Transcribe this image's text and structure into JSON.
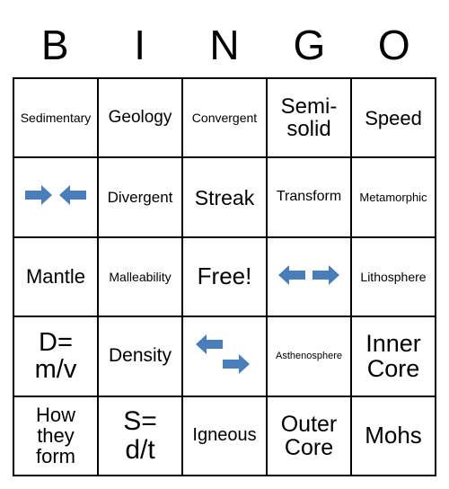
{
  "header": {
    "letters": [
      "B",
      "I",
      "N",
      "G",
      "O"
    ]
  },
  "grid": {
    "arrow_color": "#4a7ebb",
    "cells": [
      [
        {
          "type": "text",
          "text": "Sedimentary",
          "fontsize": 14
        },
        {
          "type": "text",
          "text": "Geology",
          "fontsize": 19
        },
        {
          "type": "text",
          "text": "Convergent",
          "fontsize": 14
        },
        {
          "type": "text",
          "text": "Semi-\nsolid",
          "fontsize": 24
        },
        {
          "type": "text",
          "text": "Speed",
          "fontsize": 22
        }
      ],
      [
        {
          "type": "icon",
          "icon": "arrows-in"
        },
        {
          "type": "text",
          "text": "Divergent",
          "fontsize": 17
        },
        {
          "type": "text",
          "text": "Streak",
          "fontsize": 23
        },
        {
          "type": "text",
          "text": "Transform",
          "fontsize": 16
        },
        {
          "type": "text",
          "text": "Metamorphic",
          "fontsize": 13
        }
      ],
      [
        {
          "type": "text",
          "text": "Mantle",
          "fontsize": 22
        },
        {
          "type": "text",
          "text": "Malleability",
          "fontsize": 14
        },
        {
          "type": "text",
          "text": "Free!",
          "fontsize": 26
        },
        {
          "type": "icon",
          "icon": "arrows-out"
        },
        {
          "type": "text",
          "text": "Lithosphere",
          "fontsize": 14
        }
      ],
      [
        {
          "type": "text",
          "text": "D=\nm/v",
          "fontsize": 29
        },
        {
          "type": "text",
          "text": "Density",
          "fontsize": 21
        },
        {
          "type": "icon",
          "icon": "arrows-transform"
        },
        {
          "type": "text",
          "text": "Asthenosphere",
          "fontsize": 11
        },
        {
          "type": "text",
          "text": "Inner\nCore",
          "fontsize": 27
        }
      ],
      [
        {
          "type": "text",
          "text": "How\nthey\nform",
          "fontsize": 22
        },
        {
          "type": "text",
          "text": "S=\nd/t",
          "fontsize": 30
        },
        {
          "type": "text",
          "text": "Igneous",
          "fontsize": 20
        },
        {
          "type": "text",
          "text": "Outer\nCore",
          "fontsize": 25
        },
        {
          "type": "text",
          "text": "Mohs",
          "fontsize": 26
        }
      ]
    ]
  }
}
